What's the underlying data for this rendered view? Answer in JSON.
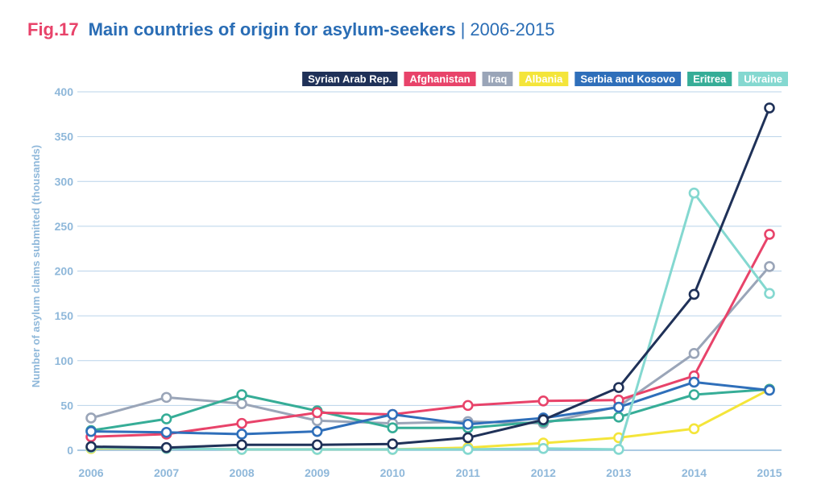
{
  "header": {
    "fig_label": "Fig.17",
    "title": "Main countries of origin for asylum-seekers",
    "separator": "|",
    "range": "2006-2015"
  },
  "chart_data": {
    "type": "line",
    "title": "Main countries of origin for asylum-seekers",
    "subtitle": "2006-2015",
    "xlabel": "",
    "ylabel": "Number of asylum claims submitted (thousands)",
    "x": [
      "2006",
      "2007",
      "2008",
      "2009",
      "2010",
      "2011",
      "2012",
      "2013",
      "2014",
      "2015"
    ],
    "ylim": [
      0,
      400
    ],
    "yticks": [
      0,
      50,
      100,
      150,
      200,
      250,
      300,
      350,
      400
    ],
    "grid": true,
    "legend_position": "top-right",
    "series": [
      {
        "name": "Syrian Arab Rep.",
        "color": "#1f3158",
        "values": [
          4,
          3,
          6,
          6,
          7,
          14,
          34,
          70,
          174,
          382
        ]
      },
      {
        "name": "Afghanistan",
        "color": "#e8436a",
        "values": [
          15,
          18,
          30,
          42,
          40,
          50,
          55,
          56,
          83,
          241
        ]
      },
      {
        "name": "Iraq",
        "color": "#9aa5b8",
        "values": [
          36,
          59,
          52,
          33,
          30,
          32,
          30,
          49,
          108,
          205
        ]
      },
      {
        "name": "Albania",
        "color": "#f4e53a",
        "values": [
          2,
          2,
          1,
          1,
          1,
          3,
          8,
          14,
          24,
          68
        ]
      },
      {
        "name": "Serbia and Kosovo",
        "color": "#2f6fba",
        "values": [
          21,
          20,
          18,
          21,
          40,
          29,
          36,
          48,
          76,
          67
        ]
      },
      {
        "name": "Eritrea",
        "color": "#36ad97",
        "values": [
          22,
          35,
          62,
          44,
          25,
          25,
          32,
          37,
          62,
          68
        ]
      },
      {
        "name": "Ukraine",
        "color": "#84d8d0",
        "values": [
          3,
          2,
          1,
          1,
          1,
          1,
          2,
          1,
          287,
          175
        ]
      }
    ]
  }
}
